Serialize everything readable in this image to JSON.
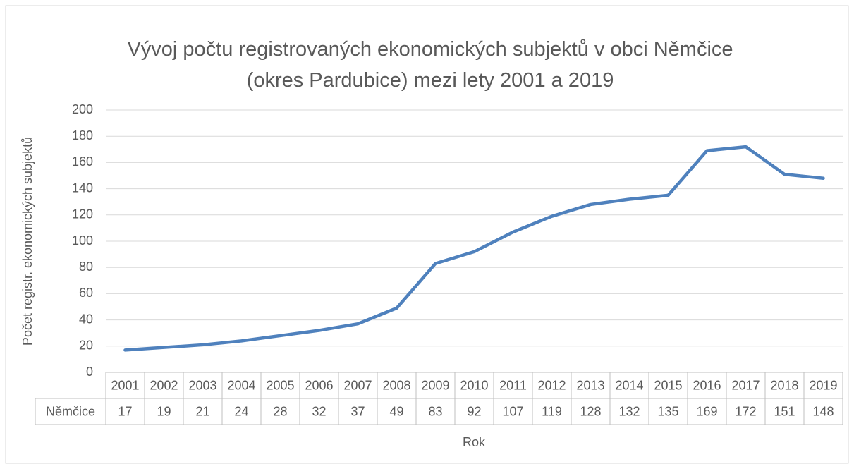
{
  "chart_data": {
    "type": "line",
    "title": "Vývoj počtu registrovaných ekonomických subjektů v obci Němčice (okres Pardubice) mezi lety 2001 a 2019",
    "x_label": "Rok",
    "y_label": "Počet registr. ekonomických subjektů",
    "categories": [
      "2001",
      "2002",
      "2003",
      "2004",
      "2005",
      "2006",
      "2007",
      "2008",
      "2009",
      "2010",
      "2011",
      "2012",
      "2013",
      "2014",
      "2015",
      "2016",
      "2017",
      "2018",
      "2019"
    ],
    "series": [
      {
        "name": "Němčice",
        "color": "#4f81bd",
        "values": [
          17,
          19,
          21,
          24,
          28,
          32,
          37,
          49,
          83,
          92,
          107,
          119,
          128,
          132,
          135,
          169,
          172,
          151,
          148
        ]
      }
    ],
    "ylim": [
      0,
      200
    ],
    "yticks": [
      0,
      20,
      40,
      60,
      80,
      100,
      120,
      140,
      160,
      180,
      200
    ],
    "grid": true
  }
}
